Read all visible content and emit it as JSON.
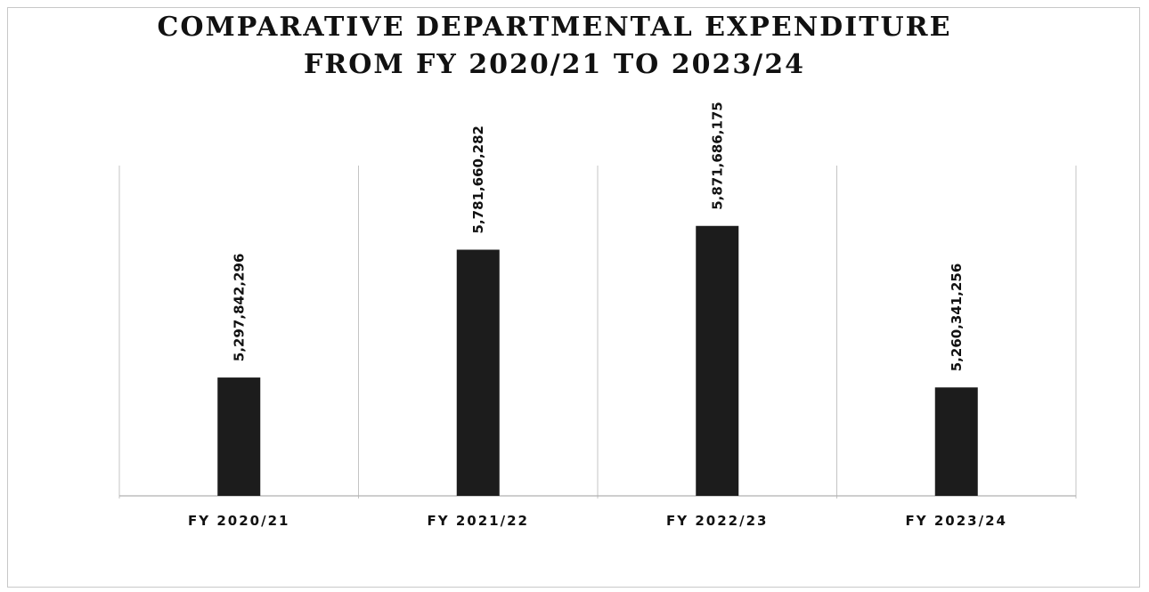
{
  "chart_data": {
    "type": "bar",
    "title": [
      "COMPARATIVE DEPARTMENTAL EXPENDITURE",
      "FROM FY 2020/21 TO 2023/24"
    ],
    "categories": [
      "FY 2020/21",
      "FY 2021/22",
      "FY 2022/23",
      "FY 2023/24"
    ],
    "values": [
      5297842296,
      5781660282,
      5871686175,
      5260341256
    ],
    "data_labels": [
      "5,297,842,296",
      "5,781,660,282",
      "5,871,686,175",
      "5,260,341,256"
    ],
    "xlabel": "",
    "ylabel": "",
    "ylim": [
      4850000000,
      6100000000
    ],
    "grid": false,
    "legend": "none",
    "bar_color": "#1c1c1c",
    "axis_color": "#b0b0b0",
    "separator_color": "#c4c4c4"
  }
}
